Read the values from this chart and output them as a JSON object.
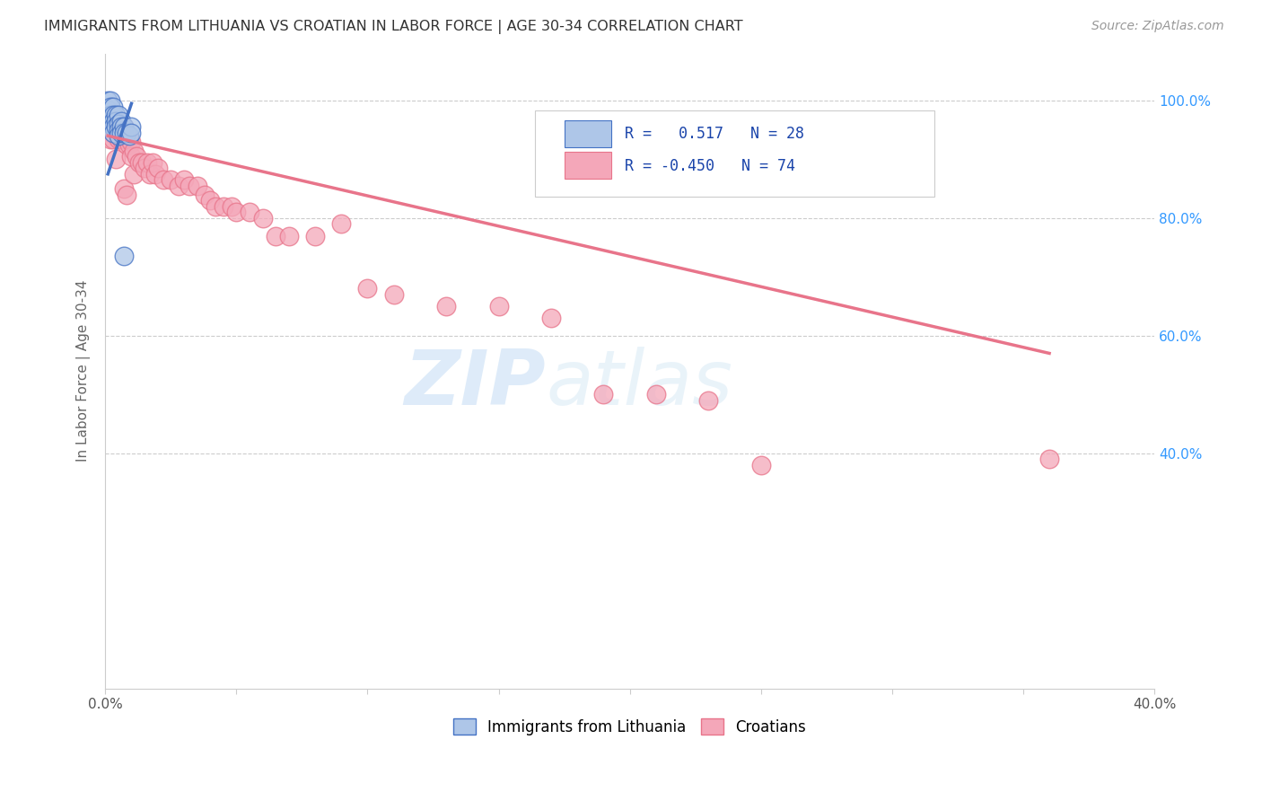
{
  "title": "IMMIGRANTS FROM LITHUANIA VS CROATIAN IN LABOR FORCE | AGE 30-34 CORRELATION CHART",
  "source": "Source: ZipAtlas.com",
  "ylabel": "In Labor Force | Age 30-34",
  "xlim": [
    0.0,
    0.4
  ],
  "ylim": [
    0.0,
    1.08
  ],
  "xtick_positions": [
    0.0,
    0.05,
    0.1,
    0.15,
    0.2,
    0.25,
    0.3,
    0.35,
    0.4
  ],
  "xtick_labels": [
    "0.0%",
    "",
    "",
    "",
    "",
    "",
    "",
    "",
    "40.0%"
  ],
  "ytick_positions": [
    0.4,
    0.6,
    0.8,
    1.0
  ],
  "ytick_labels": [
    "40.0%",
    "60.0%",
    "80.0%",
    "100.0%"
  ],
  "watermark_zip": "ZIP",
  "watermark_atlas": "atlas",
  "lithuania_color": "#aec6e8",
  "croatian_color": "#f4a7b9",
  "line_lithuania_color": "#4472c4",
  "line_croatian_color": "#e8748a",
  "background_color": "#ffffff",
  "grid_color": "#cccccc",
  "lithuania_scatter_x": [
    0.001,
    0.001,
    0.002,
    0.002,
    0.002,
    0.002,
    0.003,
    0.003,
    0.003,
    0.003,
    0.003,
    0.004,
    0.004,
    0.004,
    0.005,
    0.005,
    0.005,
    0.005,
    0.006,
    0.006,
    0.006,
    0.007,
    0.007,
    0.007,
    0.008,
    0.009,
    0.01,
    0.01
  ],
  "lithuania_scatter_y": [
    1.0,
    0.985,
    1.0,
    0.99,
    0.975,
    0.96,
    0.99,
    0.975,
    0.965,
    0.955,
    0.945,
    0.975,
    0.965,
    0.955,
    0.975,
    0.96,
    0.95,
    0.94,
    0.965,
    0.955,
    0.945,
    0.955,
    0.945,
    0.735,
    0.945,
    0.94,
    0.955,
    0.945
  ],
  "croatian_scatter_x": [
    0.001,
    0.001,
    0.002,
    0.002,
    0.002,
    0.002,
    0.002,
    0.003,
    0.003,
    0.003,
    0.003,
    0.003,
    0.004,
    0.004,
    0.004,
    0.004,
    0.005,
    0.005,
    0.005,
    0.005,
    0.006,
    0.006,
    0.006,
    0.007,
    0.007,
    0.007,
    0.007,
    0.008,
    0.008,
    0.008,
    0.009,
    0.009,
    0.01,
    0.01,
    0.011,
    0.011,
    0.012,
    0.013,
    0.014,
    0.015,
    0.016,
    0.017,
    0.018,
    0.019,
    0.02,
    0.022,
    0.025,
    0.028,
    0.03,
    0.032,
    0.035,
    0.038,
    0.04,
    0.042,
    0.045,
    0.048,
    0.05,
    0.055,
    0.06,
    0.065,
    0.07,
    0.08,
    0.09,
    0.1,
    0.11,
    0.13,
    0.15,
    0.17,
    0.19,
    0.21,
    0.23,
    0.25,
    0.36
  ],
  "croatian_scatter_y": [
    0.97,
    0.955,
    0.975,
    0.965,
    0.955,
    0.945,
    0.935,
    0.975,
    0.965,
    0.955,
    0.945,
    0.935,
    0.97,
    0.96,
    0.95,
    0.9,
    0.965,
    0.955,
    0.945,
    0.935,
    0.955,
    0.945,
    0.935,
    0.955,
    0.945,
    0.935,
    0.85,
    0.935,
    0.925,
    0.84,
    0.935,
    0.925,
    0.93,
    0.905,
    0.915,
    0.875,
    0.905,
    0.895,
    0.895,
    0.885,
    0.895,
    0.875,
    0.895,
    0.875,
    0.885,
    0.865,
    0.865,
    0.855,
    0.865,
    0.855,
    0.855,
    0.84,
    0.83,
    0.82,
    0.82,
    0.82,
    0.81,
    0.81,
    0.8,
    0.77,
    0.77,
    0.77,
    0.79,
    0.68,
    0.67,
    0.65,
    0.65,
    0.63,
    0.5,
    0.5,
    0.49,
    0.38,
    0.39
  ],
  "lith_line_x": [
    0.001,
    0.01
  ],
  "lith_line_y": [
    0.875,
    0.995
  ],
  "croa_line_x": [
    0.001,
    0.36
  ],
  "croa_line_y": [
    0.94,
    0.57
  ]
}
